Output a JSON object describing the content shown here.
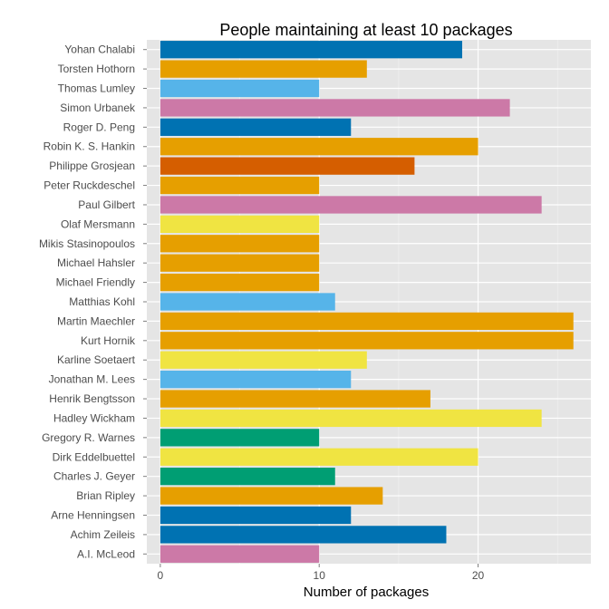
{
  "chart_data": {
    "type": "bar",
    "orientation": "horizontal",
    "title": "People maintaining at least 10 packages",
    "xlabel": "Number of packages",
    "ylabel": "",
    "xlim": [
      -0.85,
      27.1
    ],
    "xticks": [
      "0",
      "10",
      "20"
    ],
    "xtick_values": [
      0,
      10,
      20
    ],
    "grid": true,
    "legend": "none",
    "categories": [
      "Yohan Chalabi",
      "Torsten Hothorn",
      "Thomas Lumley",
      "Simon Urbanek",
      "Roger D. Peng",
      "Robin K. S. Hankin",
      "Philippe Grosjean",
      "Peter Ruckdeschel",
      "Paul Gilbert",
      "Olaf Mersmann",
      "Mikis Stasinopoulos",
      "Michael Hahsler",
      "Michael Friendly",
      "Matthias Kohl",
      "Martin Maechler",
      "Kurt Hornik",
      "Karline Soetaert",
      "Jonathan M. Lees",
      "Henrik Bengtsson",
      "Hadley Wickham",
      "Gregory R. Warnes",
      "Dirk Eddelbuettel",
      "Charles J. Geyer",
      "Brian Ripley",
      "Arne Henningsen",
      "Achim Zeileis",
      "A.I. McLeod"
    ],
    "values": [
      19,
      13,
      10,
      22,
      12,
      20,
      16,
      10,
      24,
      10,
      10,
      10,
      10,
      11,
      26,
      26,
      13,
      12,
      17,
      24,
      10,
      20,
      11,
      14,
      12,
      18,
      10
    ],
    "bar_colors": [
      "#0072B2",
      "#E69F00",
      "#56B4E9",
      "#CC79A7",
      "#0072B2",
      "#E69F00",
      "#D55E00",
      "#E69F00",
      "#CC79A7",
      "#F0E442",
      "#E69F00",
      "#E69F00",
      "#E69F00",
      "#56B4E9",
      "#E69F00",
      "#E69F00",
      "#F0E442",
      "#56B4E9",
      "#E69F00",
      "#F0E442",
      "#009E73",
      "#F0E442",
      "#009E73",
      "#E69F00",
      "#0072B2",
      "#0072B2",
      "#CC79A7"
    ],
    "colors": {
      "panel_background": "#E5E5E5",
      "grid_major": "#FFFFFF",
      "grid_minor": "#F2F2F2",
      "page_background": "#FFFFFF"
    }
  }
}
